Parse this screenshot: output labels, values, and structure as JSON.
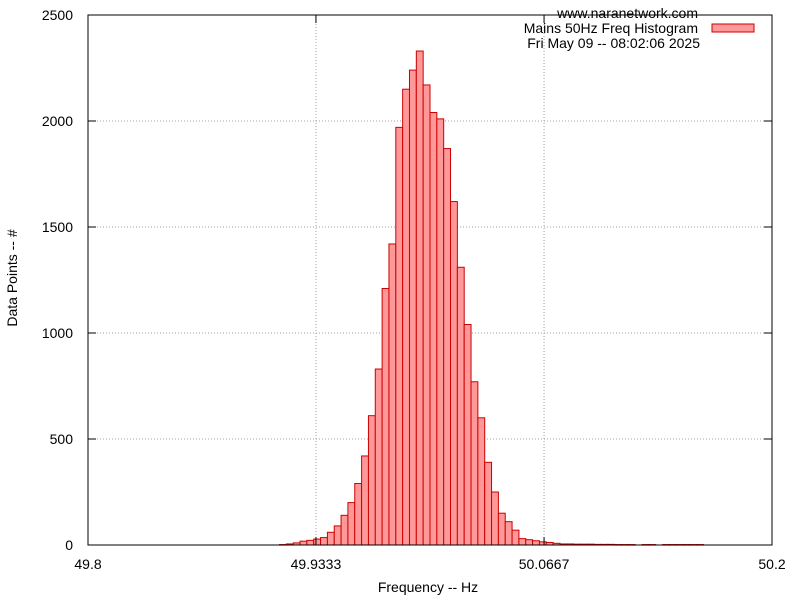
{
  "chart_data": {
    "type": "bar",
    "title_lines": [
      "www.naranetwork.com",
      "Mains 50Hz Freq Histogram",
      "Fri May 09 -- 08:02:06 2025"
    ],
    "xlabel": "Frequency -- Hz",
    "ylabel": "Data Points -- #",
    "xlim": [
      49.8,
      50.2
    ],
    "ylim": [
      0,
      2500
    ],
    "x_ticks": [
      "49.8",
      "49.9333",
      "50.0667",
      "50.2"
    ],
    "x_tick_values": [
      49.8,
      49.9333,
      50.0667,
      50.2
    ],
    "y_ticks": [
      "0",
      "500",
      "1000",
      "1500",
      "2000",
      "2500"
    ],
    "y_tick_values": [
      0,
      500,
      1000,
      1500,
      2000,
      2500
    ],
    "grid": true,
    "legend_position": "top-right",
    "bin_width": 0.004,
    "colors": {
      "fill": "#ff9999",
      "stroke": "#cc0000",
      "grid": "#a0a0a0"
    },
    "bins": [
      [
        49.914,
        2
      ],
      [
        49.918,
        5
      ],
      [
        49.922,
        10
      ],
      [
        49.926,
        18
      ],
      [
        49.93,
        22
      ],
      [
        49.934,
        28
      ],
      [
        49.938,
        35
      ],
      [
        49.942,
        60
      ],
      [
        49.946,
        90
      ],
      [
        49.95,
        140
      ],
      [
        49.954,
        200
      ],
      [
        49.958,
        290
      ],
      [
        49.962,
        420
      ],
      [
        49.966,
        610
      ],
      [
        49.97,
        830
      ],
      [
        49.974,
        1210
      ],
      [
        49.978,
        1420
      ],
      [
        49.982,
        1970
      ],
      [
        49.986,
        2150
      ],
      [
        49.99,
        2240
      ],
      [
        49.994,
        2330
      ],
      [
        49.998,
        2170
      ],
      [
        50.002,
        2040
      ],
      [
        50.006,
        2010
      ],
      [
        50.01,
        1870
      ],
      [
        50.014,
        1620
      ],
      [
        50.018,
        1310
      ],
      [
        50.022,
        1040
      ],
      [
        50.026,
        770
      ],
      [
        50.03,
        600
      ],
      [
        50.034,
        390
      ],
      [
        50.038,
        250
      ],
      [
        50.042,
        150
      ],
      [
        50.046,
        110
      ],
      [
        50.05,
        70
      ],
      [
        50.054,
        30
      ],
      [
        50.058,
        25
      ],
      [
        50.062,
        20
      ],
      [
        50.066,
        15
      ],
      [
        50.07,
        12
      ],
      [
        50.074,
        8
      ],
      [
        50.078,
        5
      ],
      [
        50.082,
        5
      ],
      [
        50.086,
        4
      ],
      [
        50.09,
        4
      ],
      [
        50.094,
        4
      ],
      [
        50.098,
        3
      ],
      [
        50.102,
        3
      ],
      [
        50.106,
        3
      ],
      [
        50.11,
        2
      ],
      [
        50.114,
        2
      ],
      [
        50.118,
        2
      ],
      [
        50.126,
        2
      ],
      [
        50.13,
        2
      ],
      [
        50.138,
        2
      ],
      [
        50.142,
        2
      ],
      [
        50.146,
        2
      ],
      [
        50.15,
        2
      ],
      [
        50.154,
        2
      ],
      [
        50.158,
        2
      ]
    ]
  }
}
